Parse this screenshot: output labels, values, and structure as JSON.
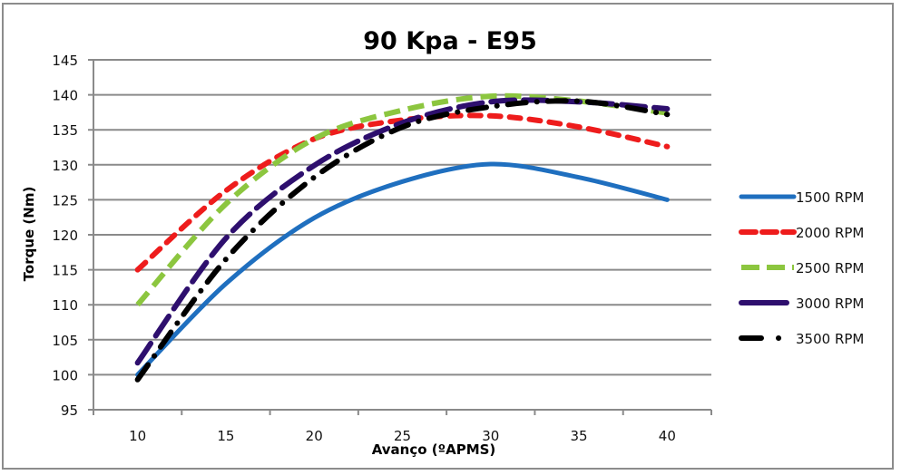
{
  "chart_data": {
    "type": "line",
    "title": "90 Kpa - E95",
    "xlabel": "Avanço (ºAPMS)",
    "ylabel": "Torque (Nm)",
    "categories": [
      "10",
      "15",
      "20",
      "25",
      "30",
      "35",
      "40"
    ],
    "ylim": [
      95,
      145
    ],
    "yticks": [
      "95",
      "100",
      "105",
      "110",
      "115",
      "120",
      "125",
      "130",
      "135",
      "140",
      "145"
    ],
    "grid": true,
    "legend_position": "right",
    "series": [
      {
        "name": "1500 RPM",
        "color": "#1f6fbf",
        "style": "solid",
        "values": [
          100.0,
          113.0,
          122.4,
          127.6,
          130.1,
          128.2,
          125.0
        ]
      },
      {
        "name": "2000 RPM",
        "color": "#ee1c1c",
        "style": "dash",
        "values": [
          115.0,
          126.3,
          133.7,
          136.4,
          137.0,
          135.4,
          132.6
        ]
      },
      {
        "name": "2500 RPM",
        "color": "#8cc63f",
        "style": "square-dash",
        "values": [
          110.0,
          124.4,
          133.7,
          137.8,
          139.8,
          139.1,
          137.4
        ]
      },
      {
        "name": "3000 RPM",
        "color": "#2e0f6e",
        "style": "long-dash",
        "values": [
          101.7,
          119.5,
          129.9,
          136.0,
          139.0,
          139.0,
          138.0
        ]
      },
      {
        "name": "3500 RPM",
        "color": "#000000",
        "style": "dash-dot",
        "values": [
          99.3,
          116.5,
          128.2,
          135.4,
          138.3,
          139.1,
          137.2
        ]
      }
    ]
  }
}
